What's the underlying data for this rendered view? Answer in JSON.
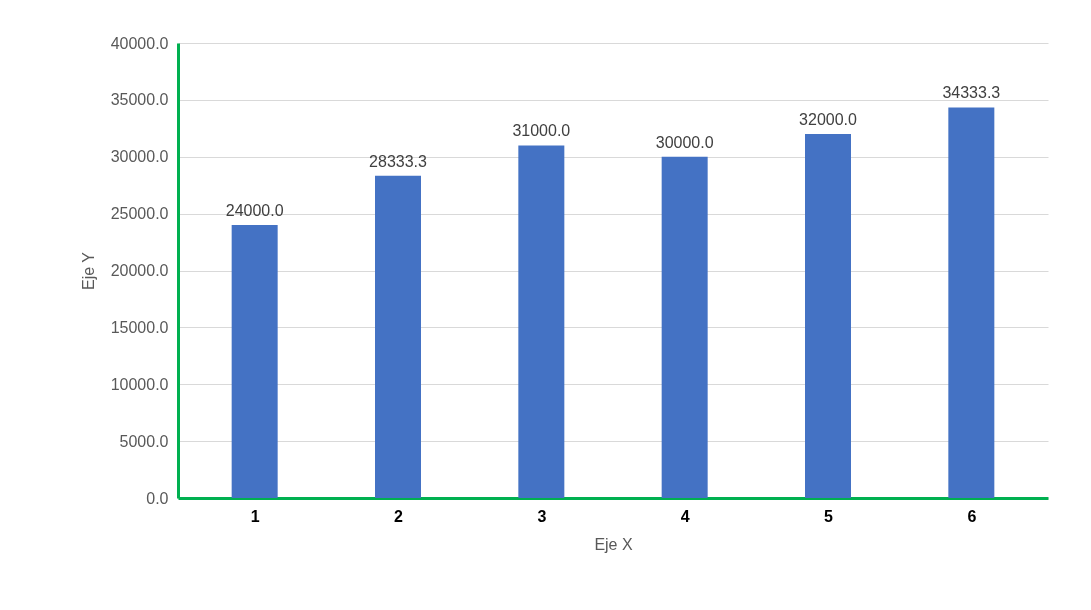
{
  "chart_data": {
    "type": "bar",
    "xlabel": "Eje X",
    "ylabel": "Eje Y",
    "categories": [
      "1",
      "2",
      "3",
      "4",
      "5",
      "6"
    ],
    "series": [
      {
        "color": "#4472c4",
        "values": [
          24000.0,
          28333.3,
          31000.0,
          30000.0,
          32000.0,
          34333.3
        ],
        "value_labels": [
          "24000.0",
          "28333.3",
          "31000.0",
          "30000.0",
          "32000.0",
          "34333.3"
        ]
      }
    ],
    "ylim": [
      0,
      40000
    ],
    "yticks": [
      {
        "value": 0,
        "label": "0.0"
      },
      {
        "value": 5000,
        "label": "5000.0"
      },
      {
        "value": 10000,
        "label": "10000.0"
      },
      {
        "value": 15000,
        "label": "15000.0"
      },
      {
        "value": 20000,
        "label": "20000.0"
      },
      {
        "value": 25000,
        "label": "25000.0"
      },
      {
        "value": 30000,
        "label": "30000.0"
      },
      {
        "value": 35000,
        "label": "35000.0"
      },
      {
        "value": 40000,
        "label": "40000.0"
      }
    ],
    "grid": "y"
  }
}
